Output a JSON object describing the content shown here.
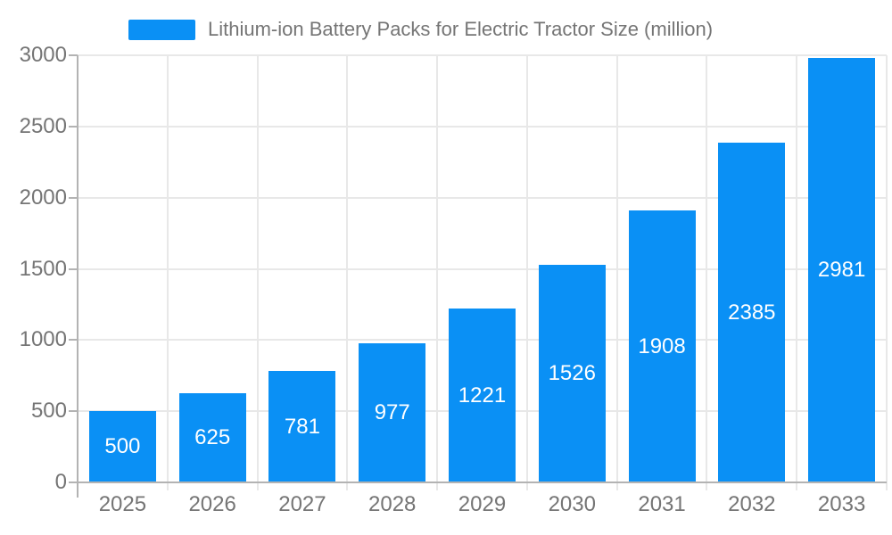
{
  "legend": {
    "label": "Lithium-ion Battery Packs for Electric Tractor Size (million)",
    "swatch_color": "#0a90f5"
  },
  "colors": {
    "background": "#ffffff",
    "bar": "#0a90f5",
    "axis": "#b3b3b3",
    "gridline": "#e8e8e8",
    "tick_label": "#757575",
    "legend_text": "#757575",
    "value_label": "#ffffff"
  },
  "chart_data": {
    "type": "bar",
    "title": "Lithium-ion Battery Packs for Electric Tractor Size (million)",
    "series_name": "Lithium-ion Battery Packs for Electric Tractor Size (million)",
    "categories": [
      "2025",
      "2026",
      "2027",
      "2028",
      "2029",
      "2030",
      "2031",
      "2032",
      "2033"
    ],
    "values": [
      500,
      625,
      781,
      977,
      1221,
      1526,
      1908,
      2385,
      2981
    ],
    "xlabel": "",
    "ylabel": "",
    "ylim": [
      0,
      3000
    ],
    "yticks": [
      0,
      500,
      1000,
      1500,
      2000,
      2500,
      3000
    ],
    "grid": true,
    "legend_position": "top",
    "value_label_position": "inside-center",
    "value_label_color": "#ffffff",
    "bar_color": "#0a90f5"
  }
}
